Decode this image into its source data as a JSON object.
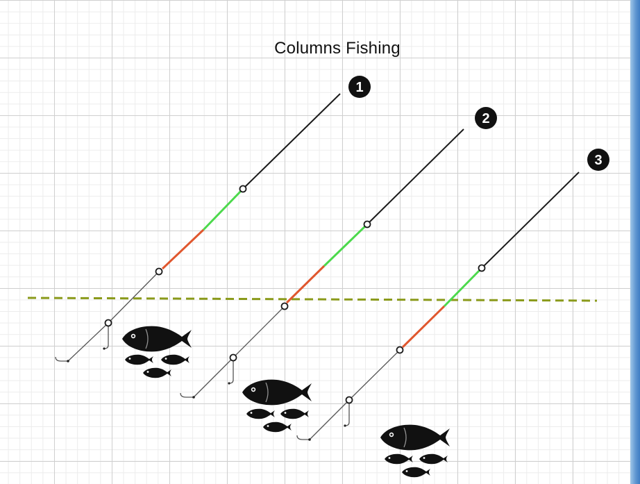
{
  "title": "Columns Fishing",
  "colors": {
    "rod": "#1a1a1a",
    "green": "#4cd94c",
    "orange": "#e0572e",
    "leader": "#555555",
    "waterline": "#8a9a1a",
    "fish": "#111111"
  },
  "rigs": [
    {
      "number": "1"
    },
    {
      "number": "2"
    },
    {
      "number": "3"
    }
  ]
}
